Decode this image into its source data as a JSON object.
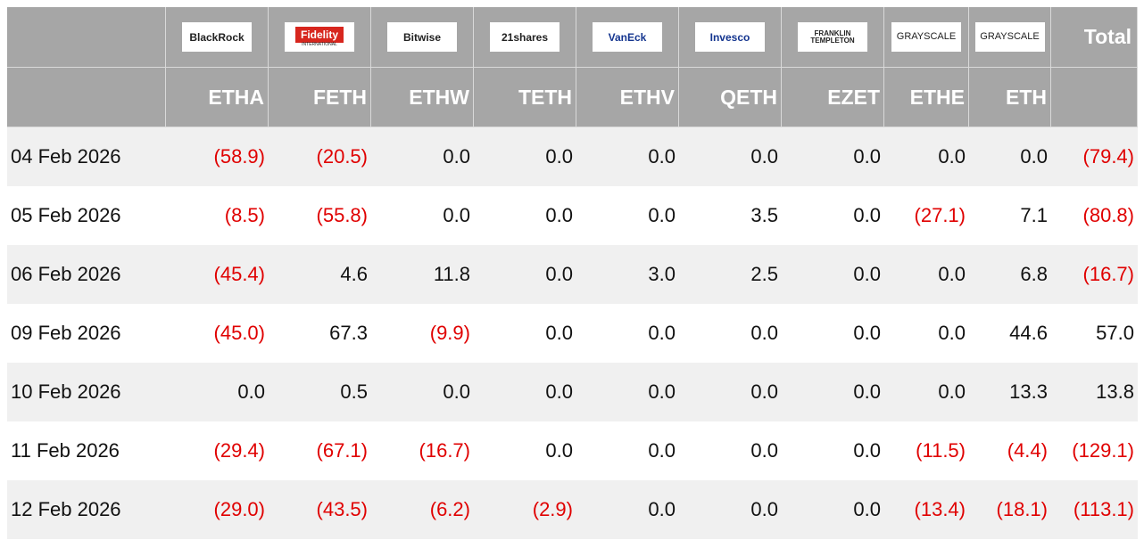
{
  "header": {
    "logos": [
      {
        "name": "BlackRock"
      },
      {
        "name": "Fidelity",
        "sub": "INTERNATIONAL"
      },
      {
        "name": "Bitwise"
      },
      {
        "name": "21shares"
      },
      {
        "name": "VanEck"
      },
      {
        "name": "Invesco"
      },
      {
        "name": "FRANKLIN TEMPLETON"
      },
      {
        "name": "GRAYSCALE"
      },
      {
        "name": "GRAYSCALE"
      }
    ],
    "total": "Total",
    "tickers": [
      "ETHA",
      "FETH",
      "ETHW",
      "TETH",
      "ETHV",
      "QETH",
      "EZET",
      "ETHE",
      "ETH"
    ]
  },
  "table": {
    "rows": [
      [
        "04 Feb 2026",
        "(58.9)",
        "(20.5)",
        "0.0",
        "0.0",
        "0.0",
        "0.0",
        "0.0",
        "0.0",
        "0.0",
        "(79.4)"
      ],
      [
        "05 Feb 2026",
        "(8.5)",
        "(55.8)",
        "0.0",
        "0.0",
        "0.0",
        "3.5",
        "0.0",
        "(27.1)",
        "7.1",
        "(80.8)"
      ],
      [
        "06 Feb 2026",
        "(45.4)",
        "4.6",
        "11.8",
        "0.0",
        "3.0",
        "2.5",
        "0.0",
        "0.0",
        "6.8",
        "(16.7)"
      ],
      [
        "09 Feb 2026",
        "(45.0)",
        "67.3",
        "(9.9)",
        "0.0",
        "0.0",
        "0.0",
        "0.0",
        "0.0",
        "44.6",
        "57.0"
      ],
      [
        "10 Feb 2026",
        "0.0",
        "0.5",
        "0.0",
        "0.0",
        "0.0",
        "0.0",
        "0.0",
        "0.0",
        "13.3",
        "13.8"
      ],
      [
        "11 Feb 2026",
        "(29.4)",
        "(67.1)",
        "(16.7)",
        "0.0",
        "0.0",
        "0.0",
        "0.0",
        "(11.5)",
        "(4.4)",
        "(129.1)"
      ],
      [
        "12 Feb 2026",
        "(29.0)",
        "(43.5)",
        "(6.2)",
        "(2.9)",
        "0.0",
        "0.0",
        "0.0",
        "(13.4)",
        "(18.1)",
        "(113.1)"
      ]
    ]
  }
}
